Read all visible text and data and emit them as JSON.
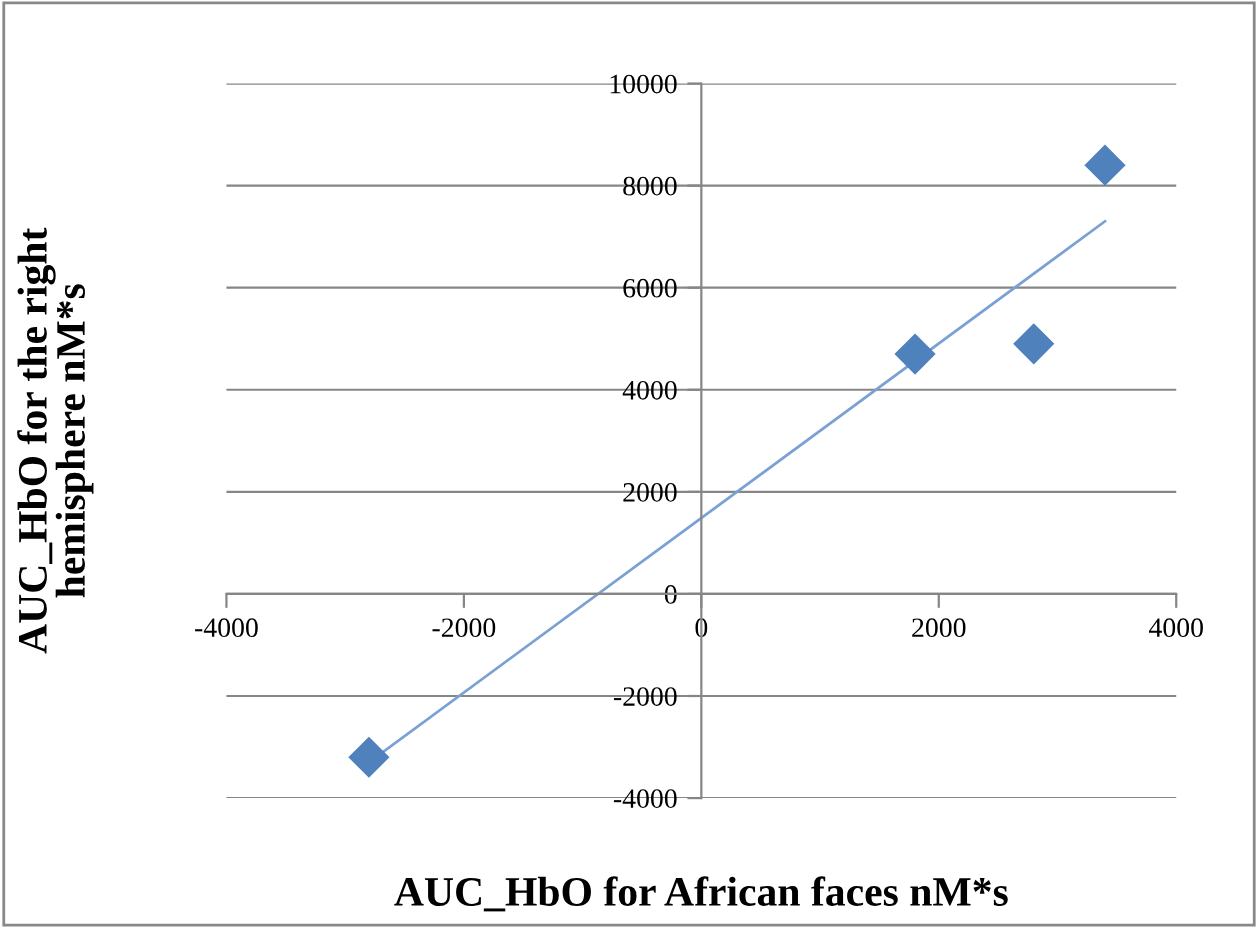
{
  "chart_data": {
    "type": "scatter",
    "xlabel": "AUC_HbO for African faces nM*s",
    "ylabel": "AUC_HbO for the right\nhemisphere nM*s",
    "series": [
      {
        "color": "#4f81bd",
        "marker": "diamond",
        "x": [
          -2800,
          1800,
          2800,
          3400
        ],
        "values": [
          -3200,
          4700,
          4900,
          8400
        ]
      },
      {
        "type": "line",
        "color": "#7ba0d4",
        "marker": "none",
        "x": [
          -2800,
          3400
        ],
        "values": [
          -3300,
          7300
        ]
      }
    ],
    "xlim": [
      -4000,
      4000
    ],
    "xticks": [
      -4000,
      -2000,
      0,
      2000,
      4000
    ],
    "ylim": [
      -4000,
      10000
    ],
    "yticks": [
      -4000,
      -2000,
      0,
      2000,
      4000,
      6000,
      8000,
      10000
    ],
    "grid": "y",
    "legend": false
  }
}
